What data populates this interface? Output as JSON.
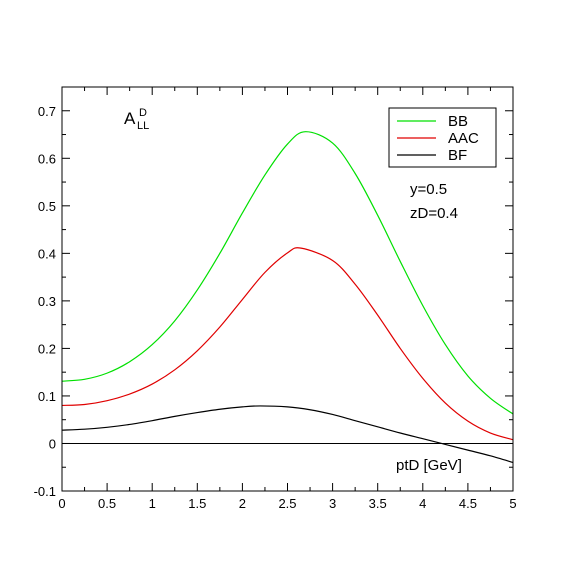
{
  "chart_data": {
    "type": "line",
    "title": "",
    "xlabel": "ptD [GeV]",
    "ylabel": "",
    "ylabel_main": "A",
    "ylabel_sub": "LL",
    "ylabel_sup": "D",
    "xlim": [
      0,
      5
    ],
    "ylim": [
      -0.1,
      0.75
    ],
    "xticks": [
      0,
      0.5,
      1,
      1.5,
      2,
      2.5,
      3,
      3.5,
      4,
      4.5,
      5
    ],
    "xtick_labels": [
      "0",
      "0.5",
      "1",
      "1.5",
      "2",
      "2.5",
      "3",
      "3.5",
      "4",
      "4.5",
      "5"
    ],
    "yticks": [
      -0.1,
      0,
      0.1,
      0.2,
      0.3,
      0.4,
      0.5,
      0.6,
      0.7
    ],
    "ytick_labels": [
      "-0.1",
      "0",
      "0.1",
      "0.2",
      "0.3",
      "0.4",
      "0.5",
      "0.6",
      "0.7"
    ],
    "grid": false,
    "legend_position": "top-right",
    "annotations": [
      "y=0.5",
      "zD=0.4"
    ],
    "zero_line": true,
    "series": [
      {
        "name": "BB",
        "color": "#00e000",
        "x": [
          0,
          0.25,
          0.5,
          0.75,
          1,
          1.25,
          1.5,
          1.75,
          2,
          2.25,
          2.5,
          2.7,
          3,
          3.25,
          3.5,
          3.75,
          4,
          4.25,
          4.5,
          4.75,
          5
        ],
        "y": [
          0.131,
          0.135,
          0.148,
          0.172,
          0.208,
          0.258,
          0.323,
          0.4,
          0.485,
          0.565,
          0.63,
          0.656,
          0.632,
          0.568,
          0.48,
          0.383,
          0.29,
          0.208,
          0.142,
          0.095,
          0.062
        ]
      },
      {
        "name": "AAC",
        "color": "#e00000",
        "x": [
          0,
          0.25,
          0.5,
          0.75,
          1,
          1.25,
          1.5,
          1.75,
          2,
          2.25,
          2.5,
          2.65,
          3,
          3.25,
          3.5,
          3.75,
          4,
          4.25,
          4.5,
          4.75,
          5
        ],
        "y": [
          0.08,
          0.082,
          0.09,
          0.104,
          0.125,
          0.155,
          0.195,
          0.245,
          0.303,
          0.36,
          0.401,
          0.411,
          0.385,
          0.335,
          0.27,
          0.2,
          0.137,
          0.085,
          0.047,
          0.022,
          0.008
        ]
      },
      {
        "name": "BF",
        "color": "#000000",
        "x": [
          0,
          0.25,
          0.5,
          0.75,
          1,
          1.25,
          1.5,
          1.75,
          2,
          2.2,
          2.5,
          2.75,
          3,
          3.25,
          3.5,
          3.75,
          4,
          4.25,
          4.5,
          4.75,
          5
        ],
        "y": [
          0.028,
          0.03,
          0.034,
          0.04,
          0.048,
          0.057,
          0.065,
          0.072,
          0.077,
          0.079,
          0.077,
          0.071,
          0.061,
          0.048,
          0.035,
          0.022,
          0.01,
          -0.002,
          -0.014,
          -0.026,
          -0.04
        ]
      }
    ]
  }
}
